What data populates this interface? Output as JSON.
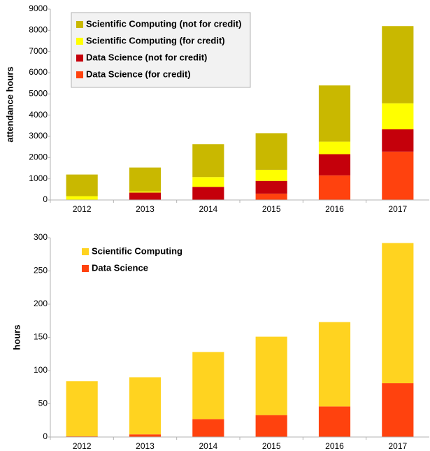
{
  "chart_data": [
    {
      "type": "bar",
      "stacked": true,
      "y_label": "attendance hours",
      "categories": [
        "2012",
        "2013",
        "2014",
        "2015",
        "2016",
        "2017"
      ],
      "series": [
        {
          "name": "Data Science (for credit)",
          "color": "#ff420e",
          "values": [
            0,
            0,
            0,
            300,
            1160,
            2280
          ]
        },
        {
          "name": "Data Science (not for credit)",
          "color": "#c5000b",
          "values": [
            0,
            350,
            620,
            600,
            1000,
            1050
          ]
        },
        {
          "name": "Scientific Computing (for credit)",
          "color": "#ffff00",
          "values": [
            180,
            50,
            460,
            520,
            590,
            1230
          ]
        },
        {
          "name": "Scientific Computing (not for credit)",
          "color": "#c9b800",
          "values": [
            1020,
            1130,
            1550,
            1730,
            2650,
            3640
          ]
        }
      ],
      "ylim": [
        0,
        9000
      ],
      "yticks": [
        0,
        1000,
        2000,
        3000,
        4000,
        5000,
        6000,
        7000,
        8000,
        9000
      ],
      "grid": false,
      "legend": "upper left",
      "legend_box": true
    },
    {
      "type": "bar",
      "stacked": true,
      "y_label": "hours",
      "categories": [
        "2012",
        "2013",
        "2014",
        "2015",
        "2016",
        "2017"
      ],
      "series": [
        {
          "name": "Data Science",
          "color": "#ff420e",
          "values": [
            1,
            4,
            27,
            33,
            46,
            81
          ]
        },
        {
          "name": "Scientific Computing",
          "color": "#ffd320",
          "values": [
            83,
            86,
            101,
            118,
            127,
            211
          ]
        }
      ],
      "ylim": [
        0,
        300
      ],
      "yticks": [
        0,
        50,
        100,
        150,
        200,
        250,
        300
      ],
      "grid": false,
      "legend": "upper left",
      "legend_box": false
    }
  ]
}
